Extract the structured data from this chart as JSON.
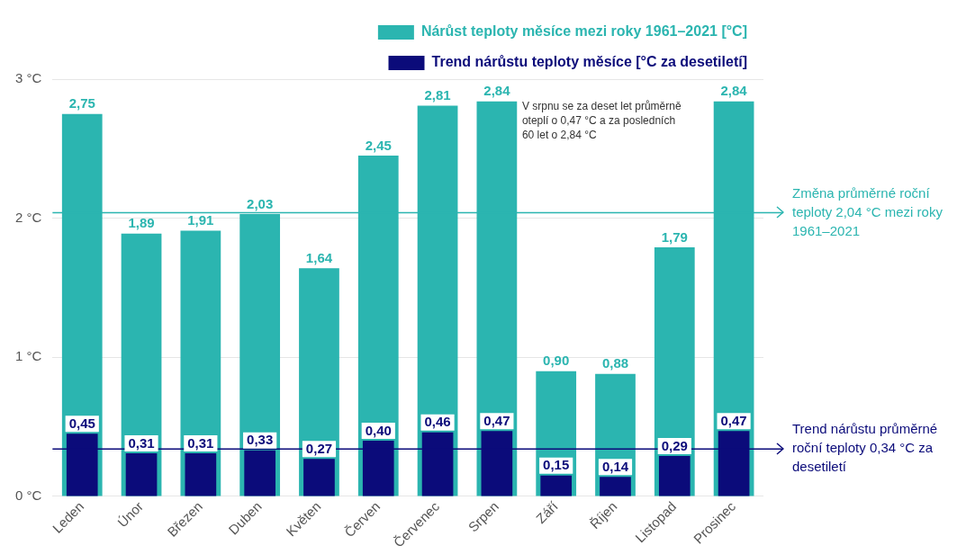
{
  "chart_data": {
    "type": "bar",
    "categories": [
      "Leden",
      "Únor",
      "Březen",
      "Duben",
      "Květen",
      "Červen",
      "Červenec",
      "Srpen",
      "Září",
      "Říjen",
      "Listopad",
      "Prosinec"
    ],
    "series": [
      {
        "name": "Nárůst teploty měsíce mezi roky 1961–2021 [°C]",
        "color": "#2bb5b0",
        "values": [
          2.75,
          1.89,
          1.91,
          2.03,
          1.64,
          2.45,
          2.81,
          2.84,
          0.9,
          0.88,
          1.79,
          2.84
        ],
        "value_labels": [
          "2,75",
          "1,89",
          "1,91",
          "2,03",
          "1,64",
          "2,45",
          "2,81",
          "2,84",
          "0,90",
          "0,88",
          "1,79",
          "2,84"
        ]
      },
      {
        "name": "Trend nárůstu teploty měsíce [°C za desetiletí]",
        "color": "#0b0b7a",
        "values": [
          0.45,
          0.31,
          0.31,
          0.33,
          0.27,
          0.4,
          0.46,
          0.47,
          0.15,
          0.14,
          0.29,
          0.47
        ],
        "value_labels": [
          "0,45",
          "0,31",
          "0,31",
          "0,33",
          "0,27",
          "0,40",
          "0,46",
          "0,47",
          "0,15",
          "0,14",
          "0,29",
          "0,47"
        ]
      }
    ],
    "ylim": [
      0,
      3
    ],
    "yticks": [
      {
        "value": 0,
        "label": "0 °C"
      },
      {
        "value": 1,
        "label": "1 °C"
      },
      {
        "value": 2,
        "label": "2 °C"
      },
      {
        "value": 3,
        "label": "3 °C"
      }
    ],
    "grid": "y",
    "legend": "top right",
    "ref_lines": [
      {
        "axis": "y",
        "value": 2.04,
        "label": "Změna průměrné roční teploty 2,04 °C mezi roky 1961–2021",
        "color": "#2bb5b0"
      },
      {
        "axis": "y",
        "value": 0.34,
        "label": "Trend nárůstu průměrné roční teploty 0,34 °C za desetiletí",
        "color": "#0b0b7a"
      }
    ],
    "annotations": [
      {
        "text": "V srpnu se za deset let průměrně oteplí o 0,47 °C a za posledních 60 let o 2,84 °C",
        "x": "Srpen",
        "y": 2.84
      }
    ]
  }
}
